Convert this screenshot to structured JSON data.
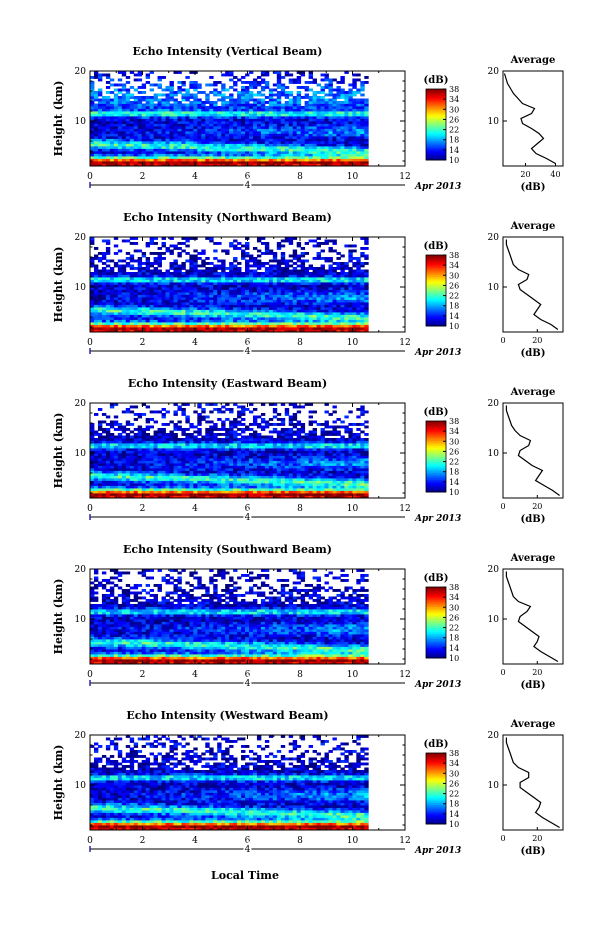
{
  "page": {
    "x_title": "Local Time",
    "date_label": "Apr 2013",
    "day_marker": "4"
  },
  "chart_data": [
    {
      "type": "heatmap",
      "title": "Echo Intensity (Vertical Beam)",
      "ylabel": "Height (km)",
      "xlabel": "Local Time",
      "xlim": [
        0,
        12
      ],
      "x_ticks": [
        0,
        2,
        4,
        6,
        8,
        10,
        12
      ],
      "ylim": [
        1,
        20
      ],
      "y_ticks": [
        10,
        20
      ],
      "data_x_range": [
        0,
        10.6
      ],
      "colorbar": {
        "label": "(dB)",
        "range": [
          10,
          38
        ],
        "ticks": [
          10,
          14,
          18,
          22,
          26,
          30,
          34,
          38
        ]
      },
      "average": {
        "title": "Average",
        "xlabel": "(dB)",
        "xlim": [
          5,
          45
        ],
        "x_ticks": [
          20,
          40
        ],
        "height": [
          1.5,
          2.5,
          3.5,
          4.5,
          5.5,
          6.5,
          7.5,
          8.5,
          9.5,
          10.5,
          11.5,
          12.5,
          13.5,
          14.5,
          15.5,
          16.5,
          17.5,
          18.5,
          19.5
        ],
        "db": [
          40,
          34,
          27,
          24,
          28,
          32,
          29,
          24,
          18,
          17,
          24,
          26,
          18,
          15,
          12,
          10,
          8,
          7,
          6
        ]
      }
    },
    {
      "type": "heatmap",
      "title": "Echo Intensity (Northward Beam)",
      "ylabel": "Height (km)",
      "xlabel": "Local Time",
      "xlim": [
        0,
        12
      ],
      "x_ticks": [
        0,
        2,
        4,
        6,
        8,
        10,
        12
      ],
      "ylim": [
        1,
        20
      ],
      "y_ticks": [
        10,
        20
      ],
      "data_x_range": [
        0,
        10.6
      ],
      "colorbar": {
        "label": "(dB)",
        "range": [
          10,
          38
        ],
        "ticks": [
          10,
          14,
          18,
          22,
          26,
          30,
          34,
          38
        ]
      },
      "average": {
        "title": "Average",
        "xlabel": "(dB)",
        "xlim": [
          0,
          35
        ],
        "x_ticks": [
          0,
          20
        ],
        "height": [
          1.5,
          2.5,
          3.5,
          4.5,
          5.5,
          6.5,
          7.5,
          8.5,
          9.5,
          10.5,
          11.5,
          12.5,
          13.5,
          14.5,
          15.5,
          16.5,
          17.5,
          18.5,
          19.5
        ],
        "db": [
          32,
          28,
          22,
          18,
          20,
          22,
          18,
          14,
          10,
          9,
          14,
          15,
          9,
          6,
          5,
          4,
          3,
          2,
          2
        ]
      }
    },
    {
      "type": "heatmap",
      "title": "Echo Intensity (Eastward Beam)",
      "ylabel": "Height (km)",
      "xlabel": "Local Time",
      "xlim": [
        0,
        12
      ],
      "x_ticks": [
        0,
        2,
        4,
        6,
        8,
        10,
        12
      ],
      "ylim": [
        1,
        20
      ],
      "y_ticks": [
        10,
        20
      ],
      "data_x_range": [
        0,
        10.6
      ],
      "colorbar": {
        "label": "(dB)",
        "range": [
          10,
          38
        ],
        "ticks": [
          10,
          14,
          18,
          22,
          26,
          30,
          34,
          38
        ]
      },
      "average": {
        "title": "Average",
        "xlabel": "(dB)",
        "xlim": [
          0,
          35
        ],
        "x_ticks": [
          0,
          20
        ],
        "height": [
          1.5,
          2.5,
          3.5,
          4.5,
          5.5,
          6.5,
          7.5,
          8.5,
          9.5,
          10.5,
          11.5,
          12.5,
          13.5,
          14.5,
          15.5,
          16.5,
          17.5,
          18.5,
          19.5
        ],
        "db": [
          33,
          29,
          24,
          19,
          21,
          23,
          17,
          13,
          9,
          10,
          15,
          16,
          10,
          7,
          5,
          4,
          3,
          2,
          2
        ]
      }
    },
    {
      "type": "heatmap",
      "title": "Echo Intensity (Southward Beam)",
      "ylabel": "Height (km)",
      "xlabel": "Local Time",
      "xlim": [
        0,
        12
      ],
      "x_ticks": [
        0,
        2,
        4,
        6,
        8,
        10,
        12
      ],
      "ylim": [
        1,
        20
      ],
      "y_ticks": [
        10,
        20
      ],
      "data_x_range": [
        0,
        10.6
      ],
      "colorbar": {
        "label": "(dB)",
        "range": [
          10,
          38
        ],
        "ticks": [
          10,
          14,
          18,
          22,
          26,
          30,
          34,
          38
        ]
      },
      "average": {
        "title": "Average",
        "xlabel": "(dB)",
        "xlim": [
          0,
          35
        ],
        "x_ticks": [
          0,
          20
        ],
        "height": [
          1.5,
          2.5,
          3.5,
          4.5,
          5.5,
          6.5,
          7.5,
          8.5,
          9.5,
          10.5,
          11.5,
          12.5,
          13.5,
          14.5,
          15.5,
          16.5,
          17.5,
          18.5,
          19.5
        ],
        "db": [
          32,
          27,
          22,
          18,
          20,
          21,
          17,
          13,
          9,
          10,
          14,
          16,
          9,
          6,
          5,
          4,
          3,
          2,
          2
        ]
      }
    },
    {
      "type": "heatmap",
      "title": "Echo Intensity (Westward Beam)",
      "ylabel": "Height (km)",
      "xlabel": "Local Time",
      "xlim": [
        0,
        12
      ],
      "x_ticks": [
        0,
        2,
        4,
        6,
        8,
        10,
        12
      ],
      "ylim": [
        1,
        20
      ],
      "y_ticks": [
        10,
        20
      ],
      "data_x_range": [
        0,
        10.6
      ],
      "colorbar": {
        "label": "(dB)",
        "range": [
          10,
          38
        ],
        "ticks": [
          10,
          14,
          18,
          22,
          26,
          30,
          34,
          38
        ]
      },
      "average": {
        "title": "Average",
        "xlabel": "(dB)",
        "xlim": [
          0,
          35
        ],
        "x_ticks": [
          0,
          20
        ],
        "height": [
          1.5,
          2.5,
          3.5,
          4.5,
          5.5,
          6.5,
          7.5,
          8.5,
          9.5,
          10.5,
          11.5,
          12.5,
          13.5,
          14.5,
          15.5,
          16.5,
          17.5,
          18.5,
          19.5
        ],
        "db": [
          33,
          28,
          23,
          19,
          21,
          22,
          18,
          14,
          10,
          10,
          15,
          15,
          9,
          6,
          5,
          4,
          3,
          2,
          2
        ]
      }
    }
  ]
}
